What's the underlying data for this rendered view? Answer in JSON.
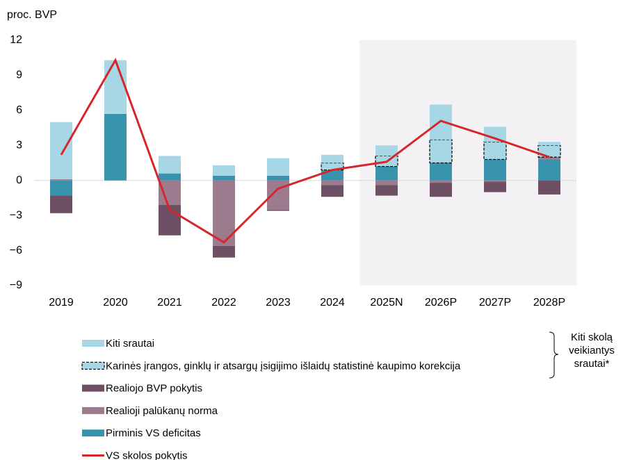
{
  "chart_data": {
    "type": "stacked-bar-line",
    "y_axis_label": "proc. BVP",
    "categories": [
      "2019",
      "2020",
      "2021",
      "2022",
      "2023",
      "2024",
      "2025N",
      "2026P",
      "2027P",
      "2028P"
    ],
    "ylim": [
      -9,
      12
    ],
    "yticks": [
      {
        "value": -9,
        "label": "−9"
      },
      {
        "value": -6,
        "label": "−6"
      },
      {
        "value": -3,
        "label": "−3"
      },
      0,
      3,
      6,
      9,
      12
    ],
    "shaded_range": [
      "2025N",
      "2028P"
    ],
    "series": [
      {
        "name": "Kiti srautai",
        "kind": "bar",
        "color": "#a7d6e4",
        "values": [
          4.9,
          4.6,
          1.5,
          0.9,
          1.5,
          0.7,
          0.9,
          3.0,
          1.3,
          0.3
        ]
      },
      {
        "name": "Karinės įrangos, ginklų ir atsargų įsigijimo išlaidų statistinė kaupimo korekcija",
        "kind": "dashed-bar",
        "color": "#a7d6e4",
        "values": [
          null,
          null,
          null,
          null,
          null,
          0.6,
          0.9,
          2.0,
          1.5,
          1.0
        ]
      },
      {
        "name": "Realiojo BVP pokytis",
        "kind": "bar",
        "color": "#6d5064",
        "values": [
          -1.5,
          null,
          -2.6,
          -1.0,
          -0.1,
          -1.0,
          -0.9,
          -1.2,
          -0.9,
          -1.2
        ]
      },
      {
        "name": "Realioji palūkanų norma",
        "kind": "bar",
        "color": "#9c7b8f",
        "values": [
          0.1,
          null,
          -2.1,
          -5.6,
          -2.5,
          -0.4,
          -0.4,
          -0.2,
          -0.1,
          0.2
        ]
      },
      {
        "name": "Pirminis VS deficitas",
        "kind": "bar",
        "color": "#3a93ac",
        "values": [
          -1.3,
          5.7,
          0.6,
          0.4,
          0.4,
          0.9,
          1.2,
          1.5,
          1.8,
          1.8
        ]
      },
      {
        "name": "VS skolos pokytis",
        "kind": "line",
        "color": "#d7262b",
        "values": [
          2.2,
          10.3,
          -2.5,
          -5.3,
          -0.7,
          0.9,
          1.6,
          5.1,
          3.6,
          2.0
        ]
      }
    ],
    "bracket_label": "Kiti skolą veikiantys srautai*"
  }
}
